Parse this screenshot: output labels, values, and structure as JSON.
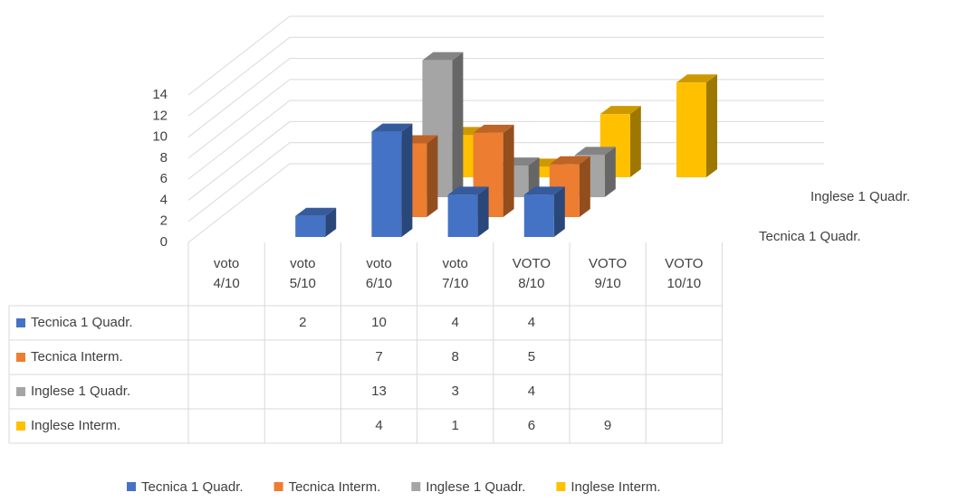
{
  "chart_data": {
    "type": "bar3d",
    "categories": [
      "voto 4/10",
      "voto 5/10",
      "voto 6/10",
      "voto 7/10",
      "VOTO 8/10",
      "VOTO 9/10",
      "VOTO 10/10"
    ],
    "series": [
      {
        "name": "Tecnica 1 Quadr.",
        "color": "#4472c4",
        "values": [
          null,
          2,
          10,
          4,
          4,
          null,
          null
        ]
      },
      {
        "name": "Tecnica Interm.",
        "color": "#ed7d31",
        "values": [
          null,
          null,
          7,
          8,
          5,
          null,
          null
        ]
      },
      {
        "name": "Inglese 1 Quadr.",
        "color": "#a5a5a5",
        "values": [
          null,
          null,
          13,
          3,
          4,
          null,
          null
        ]
      },
      {
        "name": "Inglese Interm.",
        "color": "#ffc000",
        "values": [
          null,
          null,
          4,
          1,
          6,
          9,
          null
        ]
      }
    ],
    "ylim": [
      0,
      14
    ],
    "yticks": [
      0,
      2,
      4,
      6,
      8,
      10,
      12,
      14
    ],
    "grid": true,
    "data_table": true,
    "legend": "bottom"
  }
}
